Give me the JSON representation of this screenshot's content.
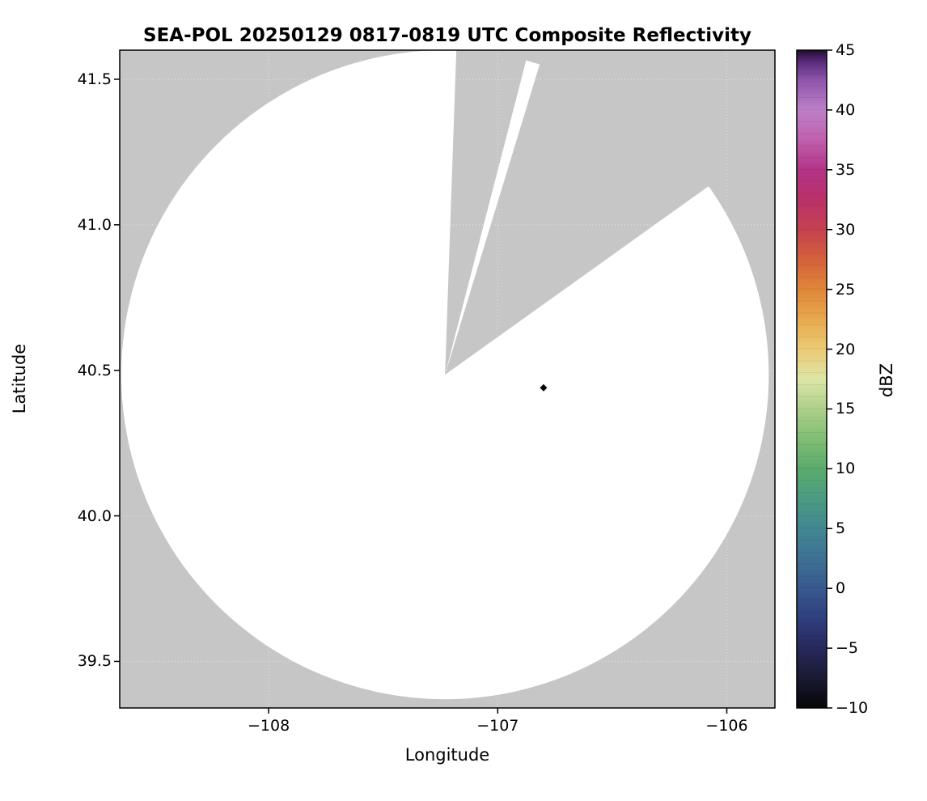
{
  "chart_data": {
    "type": "heatmap",
    "title": "SEA-POL 20250129 0817-0819 UTC Composite Reflectivity",
    "xlabel": "Longitude",
    "ylabel": "Latitude",
    "xlim": [
      -108.65,
      -105.79
    ],
    "ylim": [
      39.34,
      41.6
    ],
    "xticks": [
      -108,
      -107,
      -106
    ],
    "xtick_labels": [
      "−108",
      "−107",
      "−106"
    ],
    "yticks": [
      39.5,
      40.0,
      40.5,
      41.0,
      41.5
    ],
    "ytick_labels": [
      "39.5",
      "40.0",
      "40.5",
      "41.0",
      "41.5"
    ],
    "grid": true,
    "colors": {
      "no_coverage": "#c6c6c6",
      "coverage_clear": "#ffffff",
      "frame": "#000000",
      "grid_line": "rgba(255,255,255,0.55)"
    },
    "radar": {
      "name": "SEA-POL",
      "center_lon": -107.23,
      "center_lat": 40.485,
      "range_radius_lon_deg": 1.413,
      "range_radius_lat_deg": 1.115,
      "blocked_sectors_azimuth_deg": [
        [
          2,
          14.5
        ],
        [
          17,
          54.5
        ]
      ]
    },
    "markers": [
      {
        "lon": -106.8,
        "lat": 40.44,
        "shape": "diamond",
        "color": "#0d0514"
      }
    ],
    "colorbar": {
      "label": "dBZ",
      "min": -10,
      "max": 45,
      "ticks": [
        45,
        40,
        35,
        30,
        25,
        20,
        15,
        10,
        5,
        0,
        -5,
        -10
      ],
      "tick_labels": [
        "45",
        "40",
        "35",
        "30",
        "25",
        "20",
        "15",
        "10",
        "5",
        "0",
        "−5",
        "−10"
      ],
      "stops": [
        {
          "value": -10,
          "color": "#060608"
        },
        {
          "value": -7.5,
          "color": "#1a1a32"
        },
        {
          "value": -5,
          "color": "#26295b"
        },
        {
          "value": -2.5,
          "color": "#303f80"
        },
        {
          "value": 0,
          "color": "#38598e"
        },
        {
          "value": 2.5,
          "color": "#3d7194"
        },
        {
          "value": 5,
          "color": "#428793"
        },
        {
          "value": 7.5,
          "color": "#4a9b82"
        },
        {
          "value": 10,
          "color": "#5aab6d"
        },
        {
          "value": 12.5,
          "color": "#7fbe74"
        },
        {
          "value": 15,
          "color": "#aed08a"
        },
        {
          "value": 17.5,
          "color": "#dde6a6"
        },
        {
          "value": 20,
          "color": "#ecca74"
        },
        {
          "value": 22.5,
          "color": "#e7a94e"
        },
        {
          "value": 25,
          "color": "#df8639"
        },
        {
          "value": 27.5,
          "color": "#d4613c"
        },
        {
          "value": 30,
          "color": "#c44250"
        },
        {
          "value": 32.5,
          "color": "#bb3168"
        },
        {
          "value": 35,
          "color": "#b23487"
        },
        {
          "value": 37.5,
          "color": "#c160ae"
        },
        {
          "value": 40,
          "color": "#bd80c8"
        },
        {
          "value": 42.5,
          "color": "#8e55ab"
        },
        {
          "value": 44,
          "color": "#5c2c7d"
        },
        {
          "value": 45,
          "color": "#230b35"
        }
      ]
    }
  }
}
